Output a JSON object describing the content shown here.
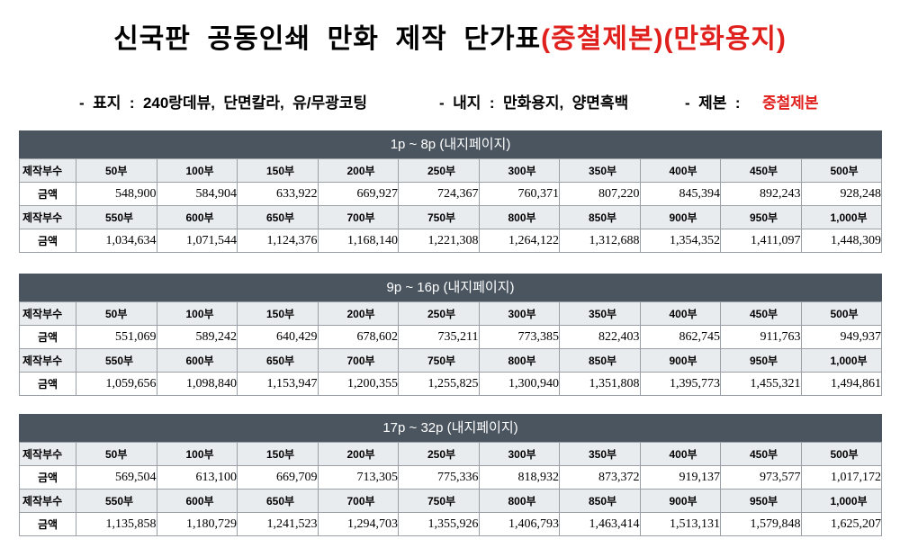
{
  "title": {
    "main": "신국판  공동인쇄  만화  제작  단가표",
    "highlight": "(중철제본)(만화용지)"
  },
  "subtitle": {
    "cover": "-  표지  :  240랑데뷰,  단면칼라,  유/무광코팅",
    "inner": "-  내지  :  만화용지,  양면흑백",
    "binding_label": "-  제본  :",
    "binding_value": "중철제본"
  },
  "colors": {
    "accent": "#e0201c",
    "header_bg": "#4a5560",
    "qty_row_bg": "#e9ecef"
  },
  "labels": {
    "qty": "제작부수",
    "price": "금액"
  },
  "sections": [
    {
      "heading": "1p  ~  8p  (내지페이지)",
      "qty1": [
        "50부",
        "100부",
        "150부",
        "200부",
        "250부",
        "300부",
        "350부",
        "400부",
        "450부",
        "500부"
      ],
      "price1": [
        "548,900",
        "584,904",
        "633,922",
        "669,927",
        "724,367",
        "760,371",
        "807,220",
        "845,394",
        "892,243",
        "928,248"
      ],
      "qty2": [
        "550부",
        "600부",
        "650부",
        "700부",
        "750부",
        "800부",
        "850부",
        "900부",
        "950부",
        "1,000부"
      ],
      "price2": [
        "1,034,634",
        "1,071,544",
        "1,124,376",
        "1,168,140",
        "1,221,308",
        "1,264,122",
        "1,312,688",
        "1,354,352",
        "1,411,097",
        "1,448,309"
      ]
    },
    {
      "heading": "9p  ~  16p  (내지페이지)",
      "qty1": [
        "50부",
        "100부",
        "150부",
        "200부",
        "250부",
        "300부",
        "350부",
        "400부",
        "450부",
        "500부"
      ],
      "price1": [
        "551,069",
        "589,242",
        "640,429",
        "678,602",
        "735,211",
        "773,385",
        "822,403",
        "862,745",
        "911,763",
        "949,937"
      ],
      "qty2": [
        "550부",
        "600부",
        "650부",
        "700부",
        "750부",
        "800부",
        "850부",
        "900부",
        "950부",
        "1,000부"
      ],
      "price2": [
        "1,059,656",
        "1,098,840",
        "1,153,947",
        "1,200,355",
        "1,255,825",
        "1,300,940",
        "1,351,808",
        "1,395,773",
        "1,455,321",
        "1,494,861"
      ]
    },
    {
      "heading": "17p  ~  32p  (내지페이지)",
      "qty1": [
        "50부",
        "100부",
        "150부",
        "200부",
        "250부",
        "300부",
        "350부",
        "400부",
        "450부",
        "500부"
      ],
      "price1": [
        "569,504",
        "613,100",
        "669,709",
        "713,305",
        "775,336",
        "818,932",
        "873,372",
        "919,137",
        "973,577",
        "1,017,172"
      ],
      "qty2": [
        "550부",
        "600부",
        "650부",
        "700부",
        "750부",
        "800부",
        "850부",
        "900부",
        "950부",
        "1,000부"
      ],
      "price2": [
        "1,135,858",
        "1,180,729",
        "1,241,523",
        "1,294,703",
        "1,355,926",
        "1,406,793",
        "1,463,414",
        "1,513,131",
        "1,579,848",
        "1,625,207"
      ]
    }
  ]
}
